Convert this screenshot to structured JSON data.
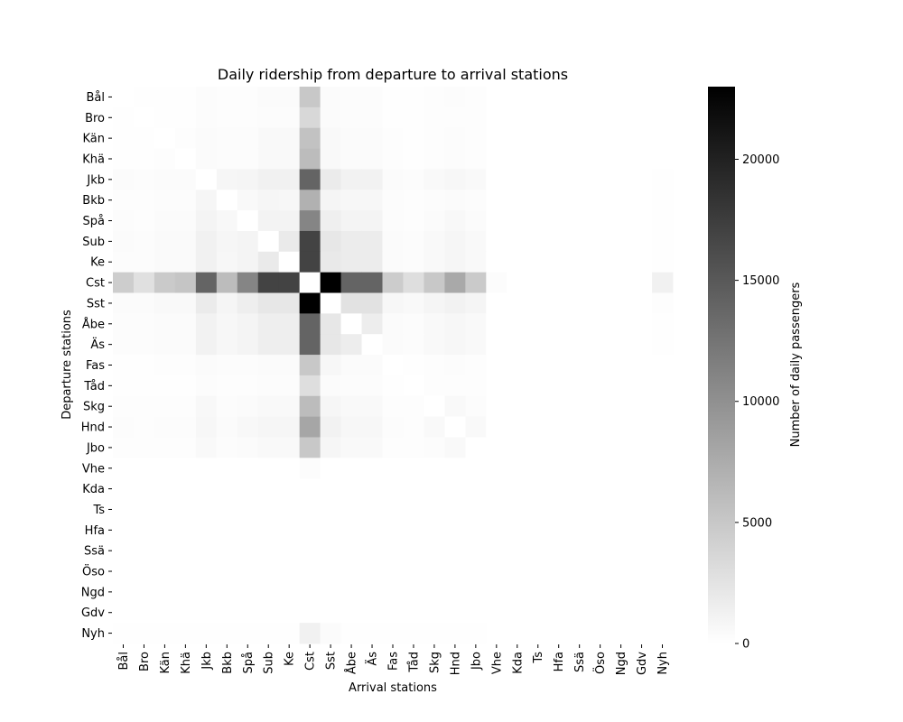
{
  "chart_data": {
    "type": "heatmap",
    "title": "Daily ridership from departure to arrival stations",
    "xlabel": "Arrival stations",
    "ylabel": "Departure stations",
    "colorbar_label": "Number of daily passengers",
    "colorbar_ticks": [
      0,
      5000,
      10000,
      15000,
      20000
    ],
    "colorbar_tick_labels": [
      "0",
      "5000",
      "10000",
      "15000",
      "20000"
    ],
    "value_range": [
      0,
      23000
    ],
    "colormap": "white-to-black",
    "stations": [
      "Bål",
      "Bro",
      "Kän",
      "Khä",
      "Jkb",
      "Bkb",
      "Spå",
      "Sub",
      "Ke",
      "Cst",
      "Sst",
      "Åbe",
      "Äs",
      "Fas",
      "Tåd",
      "Skg",
      "Hnd",
      "Jbo",
      "Vhe",
      "Kda",
      "Ts",
      "Hfa",
      "Ssä",
      "Öso",
      "Ngd",
      "Gdv",
      "Nyh"
    ],
    "matrix": [
      [
        0,
        80,
        60,
        80,
        300,
        150,
        200,
        400,
        350,
        5000,
        400,
        300,
        300,
        100,
        80,
        150,
        250,
        150,
        0,
        0,
        0,
        0,
        0,
        0,
        0,
        0,
        0
      ],
      [
        80,
        0,
        60,
        100,
        300,
        150,
        200,
        300,
        300,
        3500,
        400,
        300,
        300,
        100,
        80,
        150,
        200,
        150,
        0,
        0,
        0,
        0,
        0,
        0,
        0,
        0,
        0
      ],
      [
        80,
        80,
        0,
        200,
        400,
        250,
        300,
        500,
        500,
        5500,
        500,
        400,
        400,
        150,
        80,
        200,
        300,
        200,
        0,
        0,
        0,
        0,
        0,
        0,
        0,
        0,
        0
      ],
      [
        100,
        100,
        200,
        0,
        400,
        300,
        300,
        500,
        500,
        6000,
        500,
        400,
        400,
        150,
        80,
        200,
        300,
        200,
        0,
        0,
        0,
        0,
        0,
        0,
        0,
        0,
        0
      ],
      [
        400,
        300,
        400,
        400,
        0,
        800,
        900,
        1300,
        1300,
        14000,
        1800,
        1200,
        1200,
        400,
        300,
        500,
        700,
        500,
        0,
        0,
        0,
        0,
        0,
        0,
        0,
        0,
        100
      ],
      [
        200,
        200,
        300,
        300,
        800,
        0,
        500,
        800,
        700,
        7000,
        900,
        700,
        700,
        250,
        150,
        300,
        400,
        300,
        0,
        0,
        0,
        0,
        0,
        0,
        0,
        0,
        50
      ],
      [
        250,
        200,
        350,
        350,
        1000,
        600,
        0,
        1100,
        1100,
        11000,
        1400,
        1000,
        1000,
        300,
        200,
        400,
        600,
        400,
        0,
        0,
        0,
        0,
        0,
        0,
        0,
        0,
        50
      ],
      [
        350,
        300,
        450,
        450,
        1300,
        800,
        1000,
        0,
        1900,
        17000,
        2200,
        1700,
        1700,
        400,
        300,
        500,
        800,
        500,
        0,
        0,
        0,
        0,
        0,
        0,
        0,
        0,
        50
      ],
      [
        300,
        300,
        450,
        450,
        1300,
        700,
        1000,
        1900,
        0,
        17000,
        2000,
        1700,
        1700,
        400,
        300,
        500,
        800,
        500,
        0,
        0,
        0,
        0,
        0,
        0,
        0,
        0,
        50
      ],
      [
        4500,
        2800,
        4800,
        5200,
        14000,
        6000,
        11000,
        17000,
        17000,
        0,
        23000,
        14000,
        14000,
        4600,
        3000,
        5000,
        7800,
        4800,
        300,
        0,
        0,
        0,
        0,
        0,
        0,
        0,
        1300
      ],
      [
        400,
        350,
        550,
        550,
        1800,
        900,
        1500,
        2200,
        2200,
        23000,
        0,
        2600,
        2600,
        700,
        500,
        900,
        1200,
        900,
        0,
        0,
        0,
        0,
        0,
        0,
        0,
        0,
        200
      ],
      [
        300,
        250,
        400,
        400,
        1200,
        700,
        1000,
        1500,
        1500,
        14000,
        2200,
        0,
        1600,
        400,
        250,
        500,
        700,
        500,
        0,
        0,
        0,
        0,
        0,
        0,
        0,
        0,
        50
      ],
      [
        300,
        250,
        400,
        400,
        1200,
        700,
        1000,
        1500,
        1500,
        14000,
        2200,
        1600,
        0,
        400,
        250,
        500,
        700,
        500,
        0,
        0,
        0,
        0,
        0,
        0,
        0,
        0,
        50
      ],
      [
        100,
        100,
        150,
        150,
        400,
        250,
        300,
        400,
        400,
        5000,
        700,
        400,
        400,
        0,
        100,
        200,
        300,
        200,
        0,
        0,
        0,
        0,
        0,
        0,
        0,
        0,
        0
      ],
      [
        80,
        80,
        100,
        100,
        300,
        150,
        200,
        300,
        300,
        3000,
        400,
        300,
        300,
        100,
        0,
        150,
        200,
        150,
        0,
        0,
        0,
        0,
        0,
        0,
        0,
        0,
        0
      ],
      [
        150,
        150,
        200,
        200,
        600,
        300,
        400,
        500,
        500,
        6000,
        800,
        500,
        500,
        200,
        150,
        0,
        500,
        300,
        0,
        0,
        0,
        0,
        0,
        0,
        0,
        0,
        0
      ],
      [
        250,
        200,
        300,
        300,
        700,
        400,
        600,
        800,
        800,
        8000,
        1200,
        700,
        700,
        300,
        200,
        500,
        0,
        500,
        0,
        0,
        0,
        0,
        0,
        0,
        0,
        0,
        0
      ],
      [
        150,
        150,
        200,
        200,
        500,
        300,
        400,
        500,
        500,
        5000,
        800,
        500,
        500,
        200,
        150,
        300,
        500,
        0,
        0,
        0,
        0,
        0,
        0,
        0,
        0,
        0,
        0
      ],
      [
        0,
        0,
        0,
        0,
        0,
        0,
        0,
        0,
        0,
        300,
        0,
        0,
        0,
        0,
        0,
        0,
        0,
        0,
        0,
        0,
        0,
        0,
        0,
        0,
        0,
        0,
        0
      ],
      [
        0,
        0,
        0,
        0,
        0,
        0,
        0,
        0,
        0,
        0,
        0,
        0,
        0,
        0,
        0,
        0,
        0,
        0,
        0,
        0,
        0,
        0,
        0,
        0,
        0,
        0,
        0
      ],
      [
        0,
        0,
        0,
        0,
        0,
        0,
        0,
        0,
        0,
        0,
        0,
        0,
        0,
        0,
        0,
        0,
        0,
        0,
        0,
        0,
        0,
        0,
        0,
        0,
        0,
        0,
        0
      ],
      [
        0,
        0,
        0,
        0,
        0,
        0,
        0,
        0,
        0,
        0,
        0,
        0,
        0,
        0,
        0,
        0,
        0,
        0,
        0,
        0,
        0,
        0,
        0,
        0,
        0,
        0,
        0
      ],
      [
        0,
        0,
        0,
        0,
        0,
        0,
        0,
        0,
        0,
        0,
        0,
        0,
        0,
        0,
        0,
        0,
        0,
        0,
        0,
        0,
        0,
        0,
        0,
        0,
        0,
        0,
        0
      ],
      [
        0,
        0,
        0,
        0,
        0,
        0,
        0,
        0,
        0,
        0,
        0,
        0,
        0,
        0,
        0,
        0,
        0,
        0,
        0,
        0,
        0,
        0,
        0,
        0,
        0,
        0,
        0
      ],
      [
        0,
        0,
        0,
        0,
        0,
        0,
        0,
        0,
        0,
        0,
        0,
        0,
        0,
        0,
        0,
        0,
        0,
        0,
        0,
        0,
        0,
        0,
        0,
        0,
        0,
        0,
        0
      ],
      [
        0,
        0,
        0,
        0,
        0,
        0,
        0,
        0,
        0,
        0,
        0,
        0,
        0,
        0,
        0,
        0,
        0,
        0,
        0,
        0,
        0,
        0,
        0,
        0,
        0,
        0,
        0
      ],
      [
        50,
        50,
        50,
        50,
        100,
        50,
        100,
        100,
        100,
        1300,
        400,
        100,
        100,
        50,
        50,
        50,
        50,
        50,
        0,
        0,
        0,
        0,
        0,
        0,
        0,
        0,
        0
      ]
    ]
  }
}
